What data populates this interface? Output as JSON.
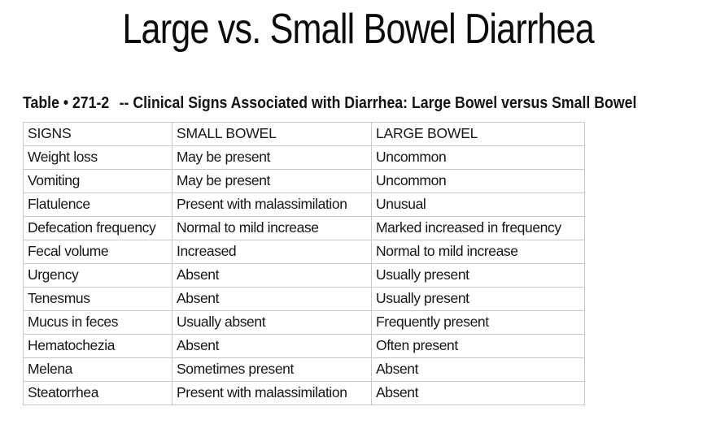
{
  "title": "Large vs. Small Bowel Diarrhea",
  "table_caption": {
    "label": "Table • 271-2",
    "text": "-- Clinical Signs Associated with Diarrhea: Large Bowel versus Small Bowel"
  },
  "table": {
    "columns": [
      "SIGNS",
      "SMALL BOWEL",
      "LARGE BOWEL"
    ],
    "rows": [
      [
        "Weight loss",
        "May be present",
        "Uncommon"
      ],
      [
        "Vomiting",
        "May be present",
        "Uncommon"
      ],
      [
        "Flatulence",
        "Present with malassimilation",
        "Unusual"
      ],
      [
        "Defecation frequency",
        "Normal to mild increase",
        "Marked increased in frequency"
      ],
      [
        "Fecal volume",
        "Increased",
        "Normal to mild increase"
      ],
      [
        "Urgency",
        "Absent",
        "Usually present"
      ],
      [
        "Tenesmus",
        "Absent",
        "Usually present"
      ],
      [
        "Mucus in feces",
        "Usually absent",
        "Frequently present"
      ],
      [
        "Hematochezia",
        "Absent",
        "Often present"
      ],
      [
        "Melena",
        "Sometimes present",
        "Absent"
      ],
      [
        "Steatorrhea",
        "Present with malassimilation",
        "Absent"
      ]
    ]
  },
  "colors": {
    "background": "#ffffff",
    "border": "#c9c9c9",
    "text": "#111111"
  }
}
